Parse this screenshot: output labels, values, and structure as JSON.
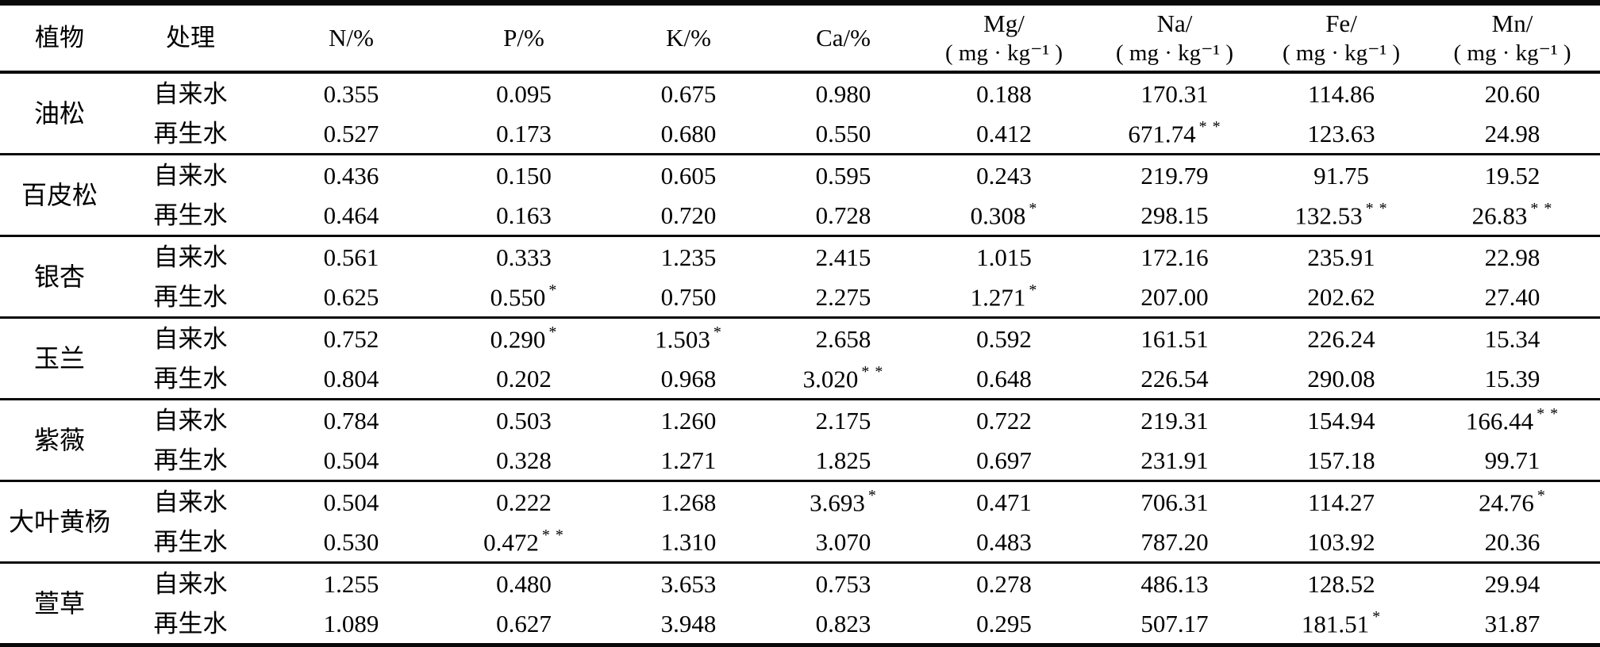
{
  "table": {
    "columns": [
      {
        "line1": "植物",
        "line2": ""
      },
      {
        "line1": "处理",
        "line2": ""
      },
      {
        "line1": "N/%",
        "line2": ""
      },
      {
        "line1": "P/%",
        "line2": ""
      },
      {
        "line1": "K/%",
        "line2": ""
      },
      {
        "line1": "Ca/%",
        "line2": ""
      },
      {
        "line1": "Mg/",
        "line2": "( mg · kg⁻¹ )"
      },
      {
        "line1": "Na/",
        "line2": "( mg · kg⁻¹ )"
      },
      {
        "line1": "Fe/",
        "line2": "( mg · kg⁻¹ )"
      },
      {
        "line1": "Mn/",
        "line2": "( mg · kg⁻¹ )"
      }
    ],
    "groups": [
      {
        "plant": "油松",
        "rows": [
          {
            "treatment": "自来水",
            "values": [
              {
                "v": "0.355",
                "m": ""
              },
              {
                "v": "0.095",
                "m": ""
              },
              {
                "v": "0.675",
                "m": ""
              },
              {
                "v": "0.980",
                "m": ""
              },
              {
                "v": "0.188",
                "m": ""
              },
              {
                "v": "170.31",
                "m": ""
              },
              {
                "v": "114.86",
                "m": ""
              },
              {
                "v": "20.60",
                "m": ""
              }
            ]
          },
          {
            "treatment": "再生水",
            "values": [
              {
                "v": "0.527",
                "m": ""
              },
              {
                "v": "0.173",
                "m": ""
              },
              {
                "v": "0.680",
                "m": ""
              },
              {
                "v": "0.550",
                "m": ""
              },
              {
                "v": "0.412",
                "m": ""
              },
              {
                "v": "671.74",
                "m": "* *"
              },
              {
                "v": "123.63",
                "m": ""
              },
              {
                "v": "24.98",
                "m": ""
              }
            ]
          }
        ]
      },
      {
        "plant": "百皮松",
        "rows": [
          {
            "treatment": "自来水",
            "values": [
              {
                "v": "0.436",
                "m": ""
              },
              {
                "v": "0.150",
                "m": ""
              },
              {
                "v": "0.605",
                "m": ""
              },
              {
                "v": "0.595",
                "m": ""
              },
              {
                "v": "0.243",
                "m": ""
              },
              {
                "v": "219.79",
                "m": ""
              },
              {
                "v": "91.75",
                "m": ""
              },
              {
                "v": "19.52",
                "m": ""
              }
            ]
          },
          {
            "treatment": "再生水",
            "values": [
              {
                "v": "0.464",
                "m": ""
              },
              {
                "v": "0.163",
                "m": ""
              },
              {
                "v": "0.720",
                "m": ""
              },
              {
                "v": "0.728",
                "m": ""
              },
              {
                "v": "0.308",
                "m": "*"
              },
              {
                "v": "298.15",
                "m": ""
              },
              {
                "v": "132.53",
                "m": "* *"
              },
              {
                "v": "26.83",
                "m": "* *"
              }
            ]
          }
        ]
      },
      {
        "plant": "银杏",
        "rows": [
          {
            "treatment": "自来水",
            "values": [
              {
                "v": "0.561",
                "m": ""
              },
              {
                "v": "0.333",
                "m": ""
              },
              {
                "v": "1.235",
                "m": ""
              },
              {
                "v": "2.415",
                "m": ""
              },
              {
                "v": "1.015",
                "m": ""
              },
              {
                "v": "172.16",
                "m": ""
              },
              {
                "v": "235.91",
                "m": ""
              },
              {
                "v": "22.98",
                "m": ""
              }
            ]
          },
          {
            "treatment": "再生水",
            "values": [
              {
                "v": "0.625",
                "m": ""
              },
              {
                "v": "0.550",
                "m": "*"
              },
              {
                "v": "0.750",
                "m": ""
              },
              {
                "v": "2.275",
                "m": ""
              },
              {
                "v": "1.271",
                "m": "*"
              },
              {
                "v": "207.00",
                "m": ""
              },
              {
                "v": "202.62",
                "m": ""
              },
              {
                "v": "27.40",
                "m": ""
              }
            ]
          }
        ]
      },
      {
        "plant": "玉兰",
        "rows": [
          {
            "treatment": "自来水",
            "values": [
              {
                "v": "0.752",
                "m": ""
              },
              {
                "v": "0.290",
                "m": "*"
              },
              {
                "v": "1.503",
                "m": "*"
              },
              {
                "v": "2.658",
                "m": ""
              },
              {
                "v": "0.592",
                "m": ""
              },
              {
                "v": "161.51",
                "m": ""
              },
              {
                "v": "226.24",
                "m": ""
              },
              {
                "v": "15.34",
                "m": ""
              }
            ]
          },
          {
            "treatment": "再生水",
            "values": [
              {
                "v": "0.804",
                "m": ""
              },
              {
                "v": "0.202",
                "m": ""
              },
              {
                "v": "0.968",
                "m": ""
              },
              {
                "v": "3.020",
                "m": "* *"
              },
              {
                "v": "0.648",
                "m": ""
              },
              {
                "v": "226.54",
                "m": ""
              },
              {
                "v": "290.08",
                "m": ""
              },
              {
                "v": "15.39",
                "m": ""
              }
            ]
          }
        ]
      },
      {
        "plant": "紫薇",
        "rows": [
          {
            "treatment": "自来水",
            "values": [
              {
                "v": "0.784",
                "m": ""
              },
              {
                "v": "0.503",
                "m": ""
              },
              {
                "v": "1.260",
                "m": ""
              },
              {
                "v": "2.175",
                "m": ""
              },
              {
                "v": "0.722",
                "m": ""
              },
              {
                "v": "219.31",
                "m": ""
              },
              {
                "v": "154.94",
                "m": ""
              },
              {
                "v": "166.44",
                "m": "* *"
              }
            ]
          },
          {
            "treatment": "再生水",
            "values": [
              {
                "v": "0.504",
                "m": ""
              },
              {
                "v": "0.328",
                "m": ""
              },
              {
                "v": "1.271",
                "m": ""
              },
              {
                "v": "1.825",
                "m": ""
              },
              {
                "v": "0.697",
                "m": ""
              },
              {
                "v": "231.91",
                "m": ""
              },
              {
                "v": "157.18",
                "m": ""
              },
              {
                "v": "99.71",
                "m": ""
              }
            ]
          }
        ]
      },
      {
        "plant": "大叶黄杨",
        "rows": [
          {
            "treatment": "自来水",
            "values": [
              {
                "v": "0.504",
                "m": ""
              },
              {
                "v": "0.222",
                "m": ""
              },
              {
                "v": "1.268",
                "m": ""
              },
              {
                "v": "3.693",
                "m": "*"
              },
              {
                "v": "0.471",
                "m": ""
              },
              {
                "v": "706.31",
                "m": ""
              },
              {
                "v": "114.27",
                "m": ""
              },
              {
                "v": "24.76",
                "m": "*"
              }
            ]
          },
          {
            "treatment": "再生水",
            "values": [
              {
                "v": "0.530",
                "m": ""
              },
              {
                "v": "0.472",
                "m": "* *"
              },
              {
                "v": "1.310",
                "m": ""
              },
              {
                "v": "3.070",
                "m": ""
              },
              {
                "v": "0.483",
                "m": ""
              },
              {
                "v": "787.20",
                "m": ""
              },
              {
                "v": "103.92",
                "m": ""
              },
              {
                "v": "20.36",
                "m": ""
              }
            ]
          }
        ]
      },
      {
        "plant": "萱草",
        "rows": [
          {
            "treatment": "自来水",
            "values": [
              {
                "v": "1.255",
                "m": ""
              },
              {
                "v": "0.480",
                "m": ""
              },
              {
                "v": "3.653",
                "m": ""
              },
              {
                "v": "0.753",
                "m": ""
              },
              {
                "v": "0.278",
                "m": ""
              },
              {
                "v": "486.13",
                "m": ""
              },
              {
                "v": "128.52",
                "m": ""
              },
              {
                "v": "29.94",
                "m": ""
              }
            ]
          },
          {
            "treatment": "再生水",
            "values": [
              {
                "v": "1.089",
                "m": ""
              },
              {
                "v": "0.627",
                "m": ""
              },
              {
                "v": "3.948",
                "m": ""
              },
              {
                "v": "0.823",
                "m": ""
              },
              {
                "v": "0.295",
                "m": ""
              },
              {
                "v": "507.17",
                "m": ""
              },
              {
                "v": "181.51",
                "m": "*"
              },
              {
                "v": "31.87",
                "m": ""
              }
            ]
          }
        ]
      }
    ]
  }
}
